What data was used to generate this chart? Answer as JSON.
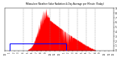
{
  "title": "Milwaukee Weather Solar Radiation & Day Average per Minute (Today)",
  "background_color": "#ffffff",
  "bar_color": "#ff0000",
  "avg_rect_color": "#0000ff",
  "grid_color": "#808080",
  "ylim": [
    0,
    900
  ],
  "xlim": [
    0,
    1440
  ],
  "avg_value": 150,
  "avg_start": 60,
  "avg_end": 810,
  "num_points": 1440,
  "dashed_lines_x": [
    240,
    360,
    600,
    720,
    840,
    960,
    1080,
    1200
  ],
  "xtick_positions": [
    0,
    60,
    120,
    180,
    240,
    300,
    360,
    420,
    480,
    540,
    600,
    660,
    720,
    780,
    840,
    900,
    960,
    1020,
    1080,
    1140,
    1200,
    1260,
    1320,
    1380,
    1440
  ],
  "xtick_labels": [
    "12",
    "1",
    "2",
    "3",
    "4",
    "5",
    "6",
    "7",
    "8",
    "9",
    "10",
    "11",
    "12",
    "1",
    "2",
    "3",
    "4",
    "5",
    "6",
    "7",
    "8",
    "9",
    "10",
    "11",
    "12"
  ],
  "ytick_positions": [
    0,
    100,
    200,
    300,
    400,
    500,
    600,
    700,
    800,
    900
  ],
  "ytick_labels": [
    "0",
    "1",
    "2",
    "3",
    "4",
    "5",
    "6",
    "7",
    "8",
    "9"
  ]
}
